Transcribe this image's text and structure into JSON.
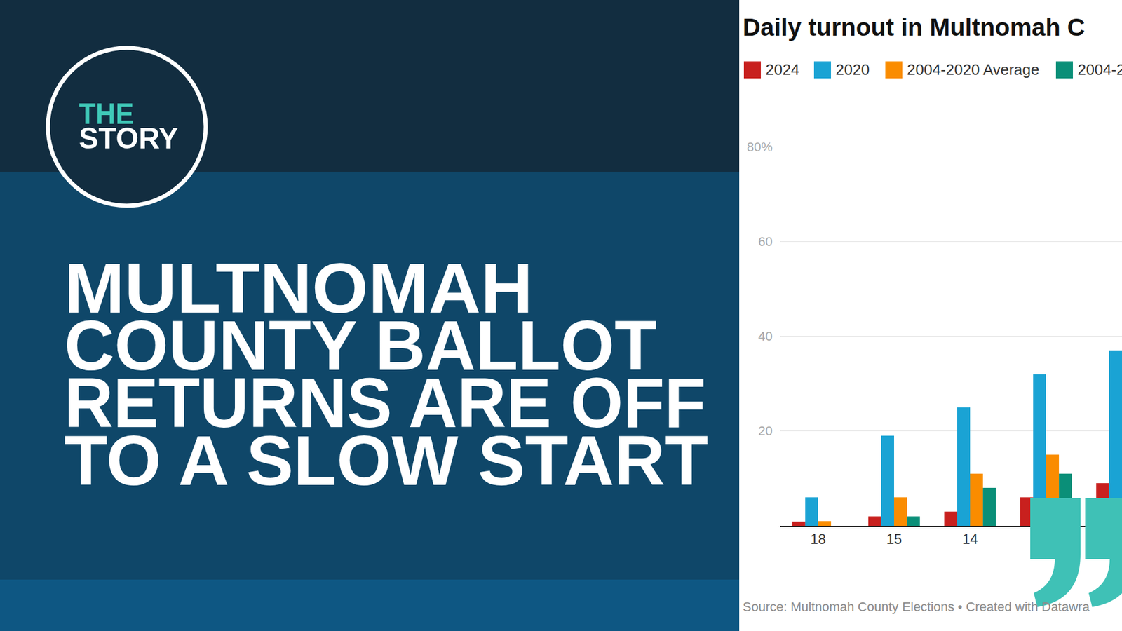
{
  "logo": {
    "line1": "THE",
    "line2": "STORY"
  },
  "headline": [
    "MULTNOMAH",
    "COUNTY BALLOT",
    "RETURNS ARE OFF",
    "TO A SLOW START"
  ],
  "chart_data": {
    "type": "bar",
    "title": "Daily turnout in Multnomah C",
    "source": "Source: Multnomah County Elections • Created with Datawra",
    "categories": [
      "18",
      "15",
      "14",
      null,
      null
    ],
    "series": [
      {
        "name": "2024",
        "color": "#c8201e",
        "values": [
          0.9,
          2,
          3,
          6,
          9
        ]
      },
      {
        "name": "2020",
        "color": "#1aa3d4",
        "values": [
          6,
          19,
          25,
          32,
          37
        ]
      },
      {
        "name": "2004-2020 Average",
        "color": "#fa8c00",
        "values": [
          1,
          6,
          11,
          15,
          null
        ]
      },
      {
        "name": "2004-2",
        "color": "#0a8f78",
        "values": [
          0,
          2,
          8,
          11,
          null
        ]
      }
    ],
    "ylim": [
      0,
      80
    ],
    "yticks": [
      20,
      40,
      60,
      {
        "value": 80,
        "label": "80%"
      }
    ],
    "grid": true,
    "legend": "top"
  }
}
